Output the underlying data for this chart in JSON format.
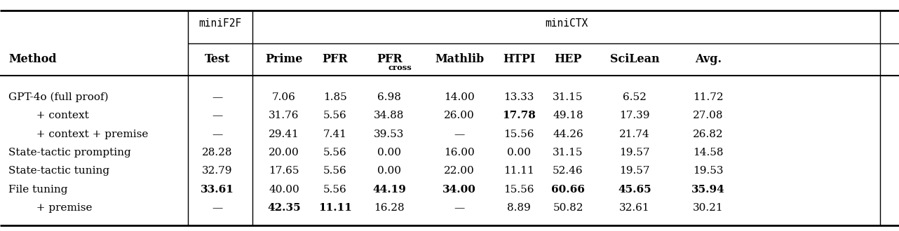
{
  "col_headers": [
    "Method",
    "Test",
    "Prime",
    "PFR",
    "PFRcross",
    "Mathlib",
    "HTPI",
    "HEP",
    "SciLean",
    "Avg."
  ],
  "rows": [
    {
      "method": "GPT-4o (full proof)",
      "indent": false,
      "values": [
        "—",
        "7.06",
        "1.85",
        "6.98",
        "14.00",
        "13.33",
        "31.15",
        "6.52",
        "11.72"
      ],
      "bold": [
        false,
        false,
        false,
        false,
        false,
        false,
        false,
        false,
        false
      ]
    },
    {
      "method": "   + context",
      "indent": true,
      "values": [
        "—",
        "31.76",
        "5.56",
        "34.88",
        "26.00",
        "17.78",
        "49.18",
        "17.39",
        "27.08"
      ],
      "bold": [
        false,
        false,
        false,
        false,
        false,
        true,
        false,
        false,
        false
      ]
    },
    {
      "method": "   + context + premise",
      "indent": true,
      "values": [
        "—",
        "29.41",
        "7.41",
        "39.53",
        "—",
        "15.56",
        "44.26",
        "21.74",
        "26.82"
      ],
      "bold": [
        false,
        false,
        false,
        false,
        false,
        false,
        false,
        false,
        false
      ]
    },
    {
      "method": "State-tactic prompting",
      "indent": false,
      "values": [
        "28.28",
        "20.00",
        "5.56",
        "0.00",
        "16.00",
        "0.00",
        "31.15",
        "19.57",
        "14.58"
      ],
      "bold": [
        false,
        false,
        false,
        false,
        false,
        false,
        false,
        false,
        false
      ]
    },
    {
      "method": "State-tactic tuning",
      "indent": false,
      "values": [
        "32.79",
        "17.65",
        "5.56",
        "0.00",
        "22.00",
        "11.11",
        "52.46",
        "19.57",
        "19.53"
      ],
      "bold": [
        false,
        false,
        false,
        false,
        false,
        false,
        false,
        false,
        false
      ]
    },
    {
      "method": "File tuning",
      "indent": false,
      "values": [
        "33.61",
        "40.00",
        "5.56",
        "44.19",
        "34.00",
        "15.56",
        "60.66",
        "45.65",
        "35.94"
      ],
      "bold": [
        true,
        false,
        false,
        true,
        true,
        false,
        true,
        true,
        true
      ]
    },
    {
      "method": "   + premise",
      "indent": true,
      "values": [
        "—",
        "42.35",
        "11.11",
        "16.28",
        "—",
        "8.89",
        "50.82",
        "32.61",
        "30.21"
      ],
      "bold": [
        false,
        true,
        true,
        false,
        false,
        false,
        false,
        false,
        false
      ]
    }
  ],
  "background_color": "#ffffff"
}
